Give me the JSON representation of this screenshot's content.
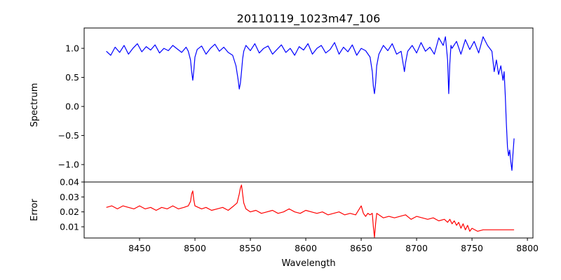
{
  "chart_data": [
    {
      "type": "line",
      "title": "20110119_1023m47_106",
      "xlabel": "",
      "ylabel": "Spectrum",
      "xlim": [
        8400,
        8805
      ],
      "ylim": [
        -1.3,
        1.35
      ],
      "yticks": [
        -1.0,
        -0.5,
        0.0,
        0.5,
        1.0
      ],
      "ytick_labels": [
        "−1.0",
        "−0.5",
        "0.0",
        "0.5",
        "1.0"
      ],
      "color": "#0000ff",
      "series": [
        {
          "x": [
            8420,
            8424,
            8428,
            8432,
            8436,
            8440,
            8444,
            8448,
            8452,
            8456,
            8460,
            8464,
            8468,
            8472,
            8476,
            8480,
            8484,
            8488,
            8492,
            8494,
            8496,
            8497,
            8498,
            8499,
            8500,
            8502,
            8506,
            8510,
            8514,
            8518,
            8522,
            8526,
            8530,
            8534,
            8537,
            8539,
            8540,
            8541,
            8542,
            8543,
            8544,
            8546,
            8550,
            8554,
            8558,
            8562,
            8566,
            8570,
            8574,
            8578,
            8582,
            8586,
            8590,
            8594,
            8598,
            8602,
            8606,
            8610,
            8614,
            8618,
            8622,
            8626,
            8630,
            8634,
            8638,
            8642,
            8646,
            8650,
            8654,
            8658,
            8660,
            8661,
            8662,
            8663,
            8664,
            8666,
            8670,
            8674,
            8678,
            8682,
            8686,
            8688,
            8689,
            8690,
            8692,
            8696,
            8700,
            8704,
            8708,
            8712,
            8716,
            8720,
            8724,
            8726,
            8728,
            8729,
            8730,
            8731,
            8732,
            8736,
            8740,
            8744,
            8748,
            8752,
            8756,
            8760,
            8764,
            8768,
            8770,
            8772,
            8774,
            8776,
            8778,
            8779,
            8780,
            8781,
            8782,
            8783,
            8784,
            8785,
            8786,
            8787,
            8788
          ],
          "y": [
            0.95,
            0.88,
            1.02,
            0.93,
            1.05,
            0.9,
            1.0,
            1.08,
            0.94,
            1.03,
            0.97,
            1.06,
            0.92,
            1.0,
            0.96,
            1.05,
            0.99,
            0.93,
            1.02,
            0.95,
            0.8,
            0.6,
            0.45,
            0.62,
            0.85,
            0.98,
            1.04,
            0.9,
            1.0,
            1.07,
            0.95,
            1.02,
            0.93,
            0.88,
            0.7,
            0.45,
            0.3,
            0.4,
            0.6,
            0.82,
            0.95,
            1.05,
            0.96,
            1.08,
            0.92,
            1.0,
            1.04,
            0.9,
            0.98,
            1.06,
            0.93,
            1.0,
            0.88,
            1.03,
            0.97,
            1.08,
            0.9,
            1.0,
            1.05,
            0.92,
            0.98,
            1.1,
            0.9,
            1.02,
            0.94,
            1.06,
            0.88,
            1.0,
            0.96,
            0.85,
            0.6,
            0.35,
            0.22,
            0.4,
            0.7,
            0.9,
            1.05,
            0.96,
            1.08,
            0.9,
            0.95,
            0.72,
            0.6,
            0.75,
            0.95,
            1.05,
            0.92,
            1.1,
            0.95,
            1.02,
            0.9,
            1.18,
            1.05,
            1.2,
            0.8,
            0.22,
            0.75,
            1.05,
            1.0,
            1.12,
            0.9,
            1.15,
            0.98,
            1.12,
            0.92,
            1.2,
            1.05,
            0.95,
            0.6,
            0.8,
            0.55,
            0.7,
            0.45,
            0.6,
            0.2,
            -0.3,
            -0.7,
            -0.85,
            -0.75,
            -0.95,
            -1.1,
            -0.8,
            -0.55
          ]
        }
      ]
    },
    {
      "type": "line",
      "title": "",
      "xlabel": "Wavelength",
      "ylabel": "Error",
      "xlim": [
        8400,
        8805
      ],
      "ylim": [
        0.0025,
        0.04
      ],
      "yticks": [
        0.01,
        0.02,
        0.03,
        0.04
      ],
      "ytick_labels": [
        "0.01",
        "0.02",
        "0.03",
        "0.04"
      ],
      "xticks": [
        8450,
        8500,
        8550,
        8600,
        8650,
        8700,
        8750,
        8800
      ],
      "xtick_labels": [
        "8450",
        "8500",
        "8550",
        "8600",
        "8650",
        "8700",
        "8750",
        "8800"
      ],
      "color": "#ff0000",
      "series": [
        {
          "x": [
            8420,
            8425,
            8430,
            8435,
            8440,
            8445,
            8450,
            8455,
            8460,
            8465,
            8470,
            8475,
            8480,
            8485,
            8490,
            8494,
            8496,
            8497,
            8498,
            8499,
            8500,
            8503,
            8506,
            8510,
            8515,
            8520,
            8525,
            8530,
            8535,
            8538,
            8540,
            8541,
            8542,
            8543,
            8544,
            8546,
            8550,
            8555,
            8560,
            8565,
            8570,
            8575,
            8580,
            8585,
            8590,
            8595,
            8600,
            8605,
            8610,
            8615,
            8620,
            8625,
            8630,
            8635,
            8640,
            8645,
            8650,
            8652,
            8654,
            8656,
            8658,
            8660,
            8661,
            8662,
            8663,
            8664,
            8666,
            8670,
            8675,
            8680,
            8685,
            8690,
            8695,
            8700,
            8705,
            8710,
            8715,
            8720,
            8725,
            8728,
            8730,
            8732,
            8734,
            8736,
            8738,
            8740,
            8742,
            8744,
            8746,
            8748,
            8750,
            8755,
            8760,
            8765,
            8770,
            8775,
            8780,
            8785,
            8788
          ],
          "y": [
            0.023,
            0.024,
            0.022,
            0.024,
            0.023,
            0.022,
            0.024,
            0.022,
            0.023,
            0.021,
            0.023,
            0.022,
            0.024,
            0.022,
            0.023,
            0.024,
            0.027,
            0.032,
            0.034,
            0.028,
            0.024,
            0.023,
            0.022,
            0.023,
            0.021,
            0.022,
            0.023,
            0.021,
            0.024,
            0.026,
            0.032,
            0.036,
            0.038,
            0.032,
            0.026,
            0.022,
            0.02,
            0.021,
            0.019,
            0.02,
            0.021,
            0.019,
            0.02,
            0.022,
            0.02,
            0.019,
            0.021,
            0.02,
            0.019,
            0.02,
            0.018,
            0.019,
            0.02,
            0.018,
            0.019,
            0.018,
            0.024,
            0.019,
            0.017,
            0.019,
            0.018,
            0.019,
            0.01,
            0.003,
            0.012,
            0.019,
            0.018,
            0.016,
            0.017,
            0.016,
            0.017,
            0.018,
            0.015,
            0.017,
            0.016,
            0.015,
            0.016,
            0.014,
            0.015,
            0.013,
            0.015,
            0.012,
            0.014,
            0.011,
            0.013,
            0.009,
            0.012,
            0.008,
            0.011,
            0.007,
            0.009,
            0.007,
            0.008,
            0.008,
            0.008,
            0.008,
            0.008,
            0.008,
            0.008
          ]
        }
      ]
    }
  ]
}
